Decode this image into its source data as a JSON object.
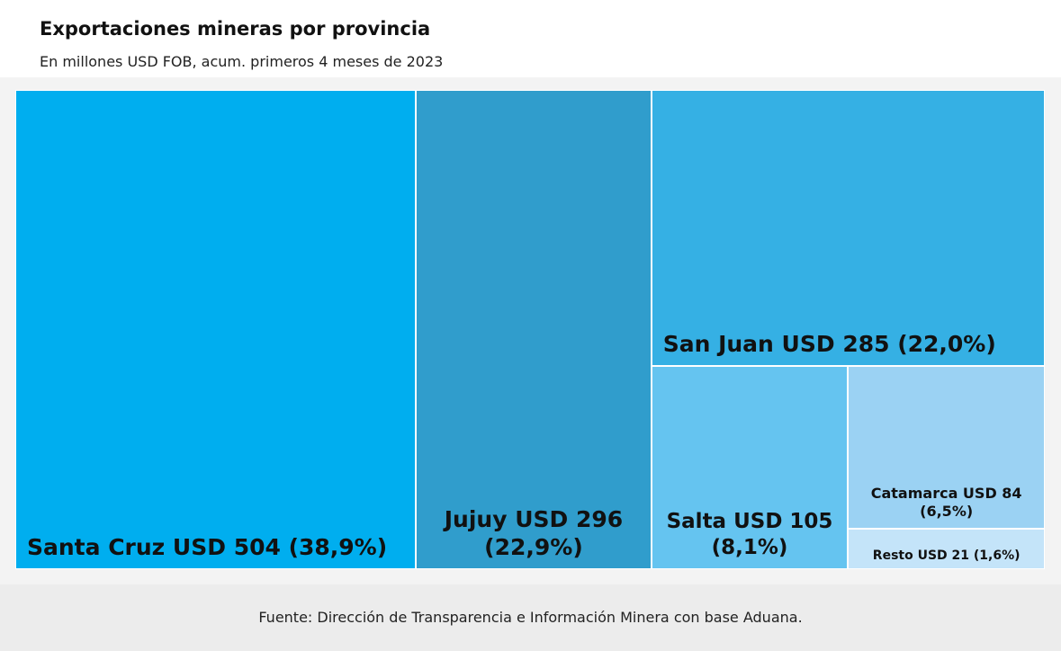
{
  "chart_data": {
    "type": "treemap",
    "title": "Exportaciones mineras por provincia",
    "subtitle": "En millones USD FOB, acum. primeros 4 meses de 2023",
    "values": [
      504,
      296,
      285,
      105,
      84,
      21
    ],
    "value_labels": [
      "Santa Cruz USD 504 (38,9%)",
      "Jujuy USD 296 (22,9%)",
      "San Juan USD 285 (22,0%)",
      "Salta USD 105 (8,1%)",
      "Catamarca USD 84 (6,5%)",
      "Resto USD 21 (1,6%)"
    ],
    "colors": [
      "#00aeef",
      "#309dcc",
      "#35b0e4",
      "#65c4f0",
      "#9bd2f3",
      "#c4e4f9"
    ],
    "source": "Fuente: Dirección de Transparencia e Información Minera con base Aduana."
  }
}
